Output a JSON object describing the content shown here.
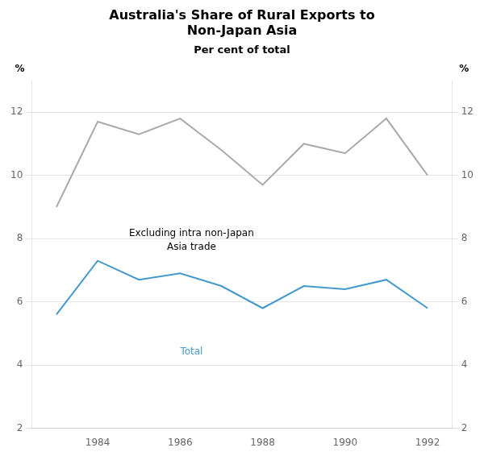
{
  "chart_data": {
    "type": "line",
    "title": [
      "Australia's Share of Rural Exports to",
      "Non-Japan Asia"
    ],
    "subtitle": "Per cent of total",
    "ylabel": "%",
    "y2label": "%",
    "x": [
      1983,
      1984,
      1985,
      1986,
      1987,
      1988,
      1989,
      1990,
      1991,
      1992
    ],
    "series": [
      {
        "color": "#aaaaaa",
        "values": [
          9.0,
          11.7,
          11.3,
          11.8,
          10.8,
          9.7,
          11.0,
          10.7,
          11.8,
          10.0
        ]
      },
      {
        "color": "#4499cc",
        "values": [
          5.6,
          7.3,
          6.7,
          6.9,
          6.5,
          5.8,
          6.5,
          6.4,
          6.7,
          5.8
        ]
      }
    ],
    "annotations": [
      {
        "text": "Excluding intra non-Japan\nAsia trade",
        "color": "#000000"
      },
      {
        "text": "Total",
        "color": "#4499cc"
      }
    ],
    "xlim": [
      1982.4,
      1992.6
    ],
    "xticks": [
      1984,
      1986,
      1988,
      1990,
      1992
    ],
    "ylim": [
      2,
      13
    ],
    "yticks": [
      2,
      4,
      6,
      8,
      10,
      12
    ],
    "y2lim": [
      2,
      13
    ],
    "y2ticks": [
      2,
      4,
      6,
      8,
      10,
      12
    ],
    "grid": true
  }
}
